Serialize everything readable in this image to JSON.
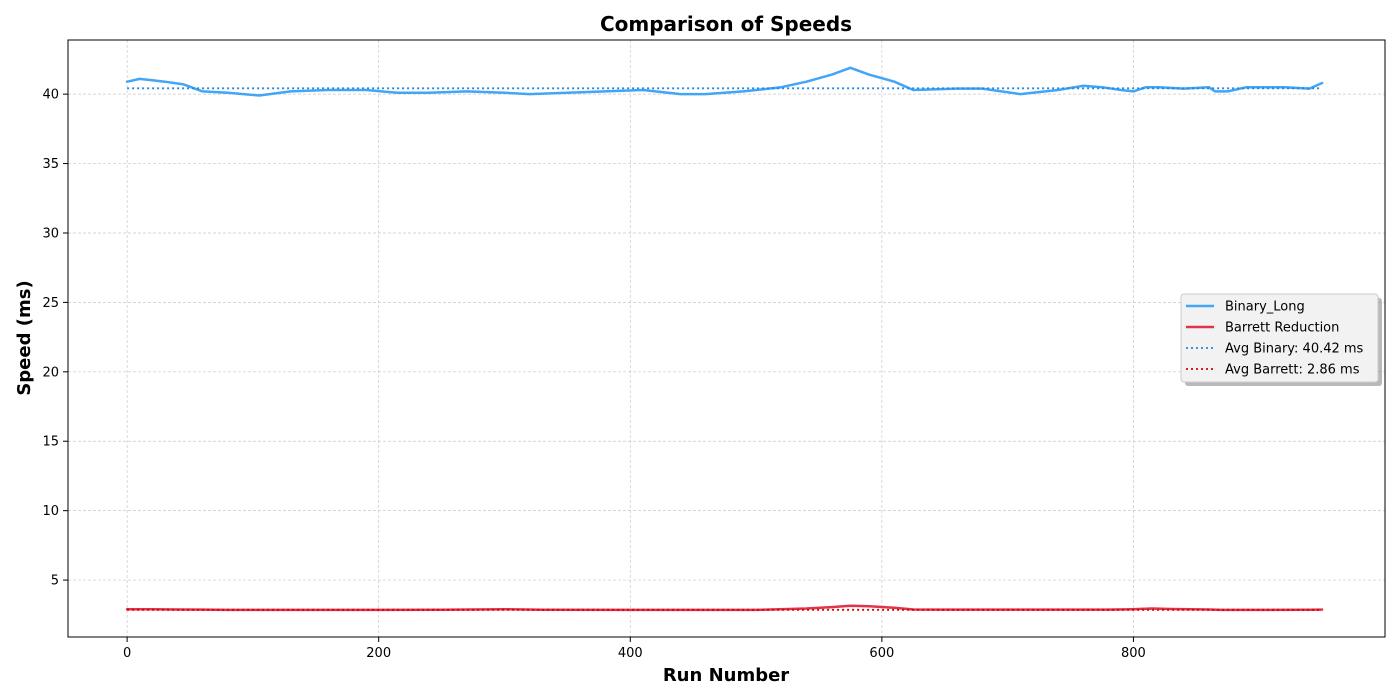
{
  "chart_data": {
    "type": "line",
    "title": "Comparison of Speeds",
    "xlabel": "Run Number",
    "ylabel": "Speed (ms)",
    "xlim": [
      -47,
      1000
    ],
    "ylim": [
      0.9,
      43.9
    ],
    "xticks": [
      0,
      200,
      400,
      600,
      800
    ],
    "yticks": [
      5,
      10,
      15,
      20,
      25,
      30,
      35,
      40
    ],
    "grid": true,
    "legend_position": "center-right",
    "series": [
      {
        "name": "Binary_Long",
        "color": "#42a5f5",
        "style": "solid",
        "x": [
          0,
          10,
          20,
          30,
          45,
          60,
          80,
          105,
          130,
          160,
          190,
          215,
          240,
          270,
          300,
          320,
          350,
          380,
          410,
          440,
          460,
          490,
          520,
          540,
          560,
          575,
          590,
          610,
          625,
          660,
          680,
          710,
          740,
          760,
          775,
          790,
          800,
          810,
          820,
          840,
          860,
          865,
          875,
          890,
          920,
          940,
          950
        ],
        "y": [
          40.9,
          41.1,
          41.0,
          40.9,
          40.7,
          40.2,
          40.1,
          39.9,
          40.2,
          40.3,
          40.3,
          40.1,
          40.1,
          40.2,
          40.1,
          40.0,
          40.1,
          40.2,
          40.3,
          40.0,
          40.0,
          40.2,
          40.5,
          40.9,
          41.4,
          41.9,
          41.4,
          40.9,
          40.3,
          40.4,
          40.4,
          40.0,
          40.3,
          40.6,
          40.5,
          40.3,
          40.2,
          40.5,
          40.5,
          40.4,
          40.5,
          40.2,
          40.2,
          40.5,
          40.5,
          40.4,
          40.8
        ]
      },
      {
        "name": "Barrett Reduction",
        "color": "#e0344c",
        "style": "solid",
        "x": [
          0,
          20,
          40,
          60,
          80,
          100,
          200,
          250,
          300,
          330,
          400,
          450,
          500,
          540,
          560,
          575,
          590,
          610,
          625,
          650,
          700,
          780,
          800,
          815,
          830,
          860,
          870,
          900,
          940,
          950
        ],
        "y": [
          2.9,
          2.9,
          2.88,
          2.87,
          2.85,
          2.85,
          2.85,
          2.86,
          2.9,
          2.86,
          2.85,
          2.85,
          2.85,
          2.95,
          3.05,
          3.15,
          3.12,
          3.0,
          2.88,
          2.87,
          2.87,
          2.87,
          2.9,
          2.95,
          2.92,
          2.88,
          2.85,
          2.85,
          2.86,
          2.87
        ]
      },
      {
        "name": "Avg Binary: 40.42 ms",
        "color": "#1e88e5",
        "style": "dotted",
        "x": [
          0,
          950
        ],
        "y": [
          40.42,
          40.42
        ]
      },
      {
        "name": "Avg Barrett: 2.86 ms",
        "color": "#d50000",
        "style": "dotted",
        "x": [
          0,
          950
        ],
        "y": [
          2.86,
          2.86
        ]
      }
    ]
  }
}
